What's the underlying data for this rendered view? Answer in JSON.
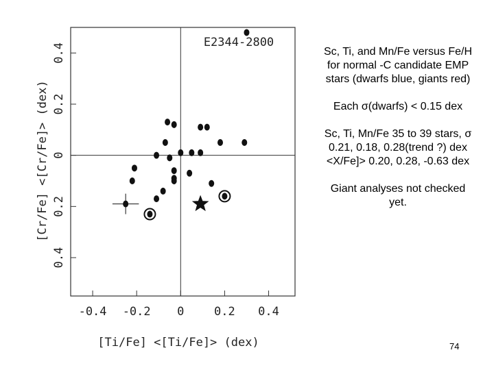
{
  "chart_data": {
    "type": "scatter",
    "xlabel": "[Ti/Fe]  <[Ti/Fe]> (dex)",
    "ylabel": "[Cr/Fe]  <[Cr/Fe]> (dex)",
    "annotation": "E2344-2800",
    "x": [
      0.3,
      -0.06,
      -0.03,
      0.09,
      0.12,
      0.18,
      0.29,
      -0.07,
      0.05,
      0.0,
      0.09,
      -0.11,
      -0.05,
      -0.21,
      -0.03,
      0.04,
      -0.22,
      -0.03,
      -0.03,
      0.14,
      -0.08,
      -0.11,
      -0.25,
      -0.14,
      0.2,
      0.09
    ],
    "y": [
      0.48,
      0.13,
      0.12,
      0.11,
      0.11,
      0.05,
      0.05,
      0.05,
      0.01,
      0.01,
      0.01,
      0.0,
      -0.01,
      -0.05,
      -0.06,
      -0.07,
      -0.1,
      -0.09,
      -0.1,
      -0.11,
      -0.14,
      -0.17,
      -0.19,
      -0.23,
      -0.16,
      -0.19
    ],
    "markers": [
      "dot",
      "dot",
      "dot",
      "dot",
      "dot",
      "dot",
      "dot",
      "dot",
      "dot",
      "dot",
      "dot",
      "dot",
      "dot",
      "dot",
      "dot",
      "dot",
      "dot",
      "dot",
      "dot",
      "dot",
      "dot",
      "dot",
      "dot",
      "circled",
      "circled",
      "star"
    ],
    "xerr": [
      null,
      null,
      null,
      null,
      null,
      null,
      null,
      null,
      null,
      null,
      null,
      null,
      null,
      null,
      null,
      null,
      null,
      null,
      null,
      null,
      null,
      null,
      0.06,
      null,
      null,
      null
    ],
    "yerr": [
      null,
      null,
      null,
      null,
      null,
      null,
      null,
      null,
      null,
      null,
      null,
      null,
      null,
      null,
      null,
      null,
      null,
      null,
      null,
      null,
      null,
      null,
      0.04,
      null,
      null,
      null
    ],
    "color": "#111111",
    "xlim": [
      -0.5,
      0.52
    ],
    "ylim": [
      -0.55,
      0.5
    ],
    "xticks": [
      -0.4,
      -0.2,
      0,
      0.2,
      0.4
    ],
    "yticks": [
      0.4,
      0.2,
      0,
      {
        "value": -0.2,
        "label": "0.2"
      },
      {
        "value": -0.4,
        "label": "0.4"
      }
    ]
  },
  "notes": [
    "Sc, Ti, and Mn/Fe versus Fe/H for normal -C candidate EMP stars (dwarfs blue, giants red)",
    "Each σ(dwarfs) < 0.15 dex",
    "Sc, Ti, Mn/Fe 35 to 39 stars, σ 0.21, 0.18, 0.28(trend ?) dex <X/Fe]> 0.20, 0.28, -0.63 dex",
    "Giant analyses not checked yet."
  ],
  "page_number": "74"
}
